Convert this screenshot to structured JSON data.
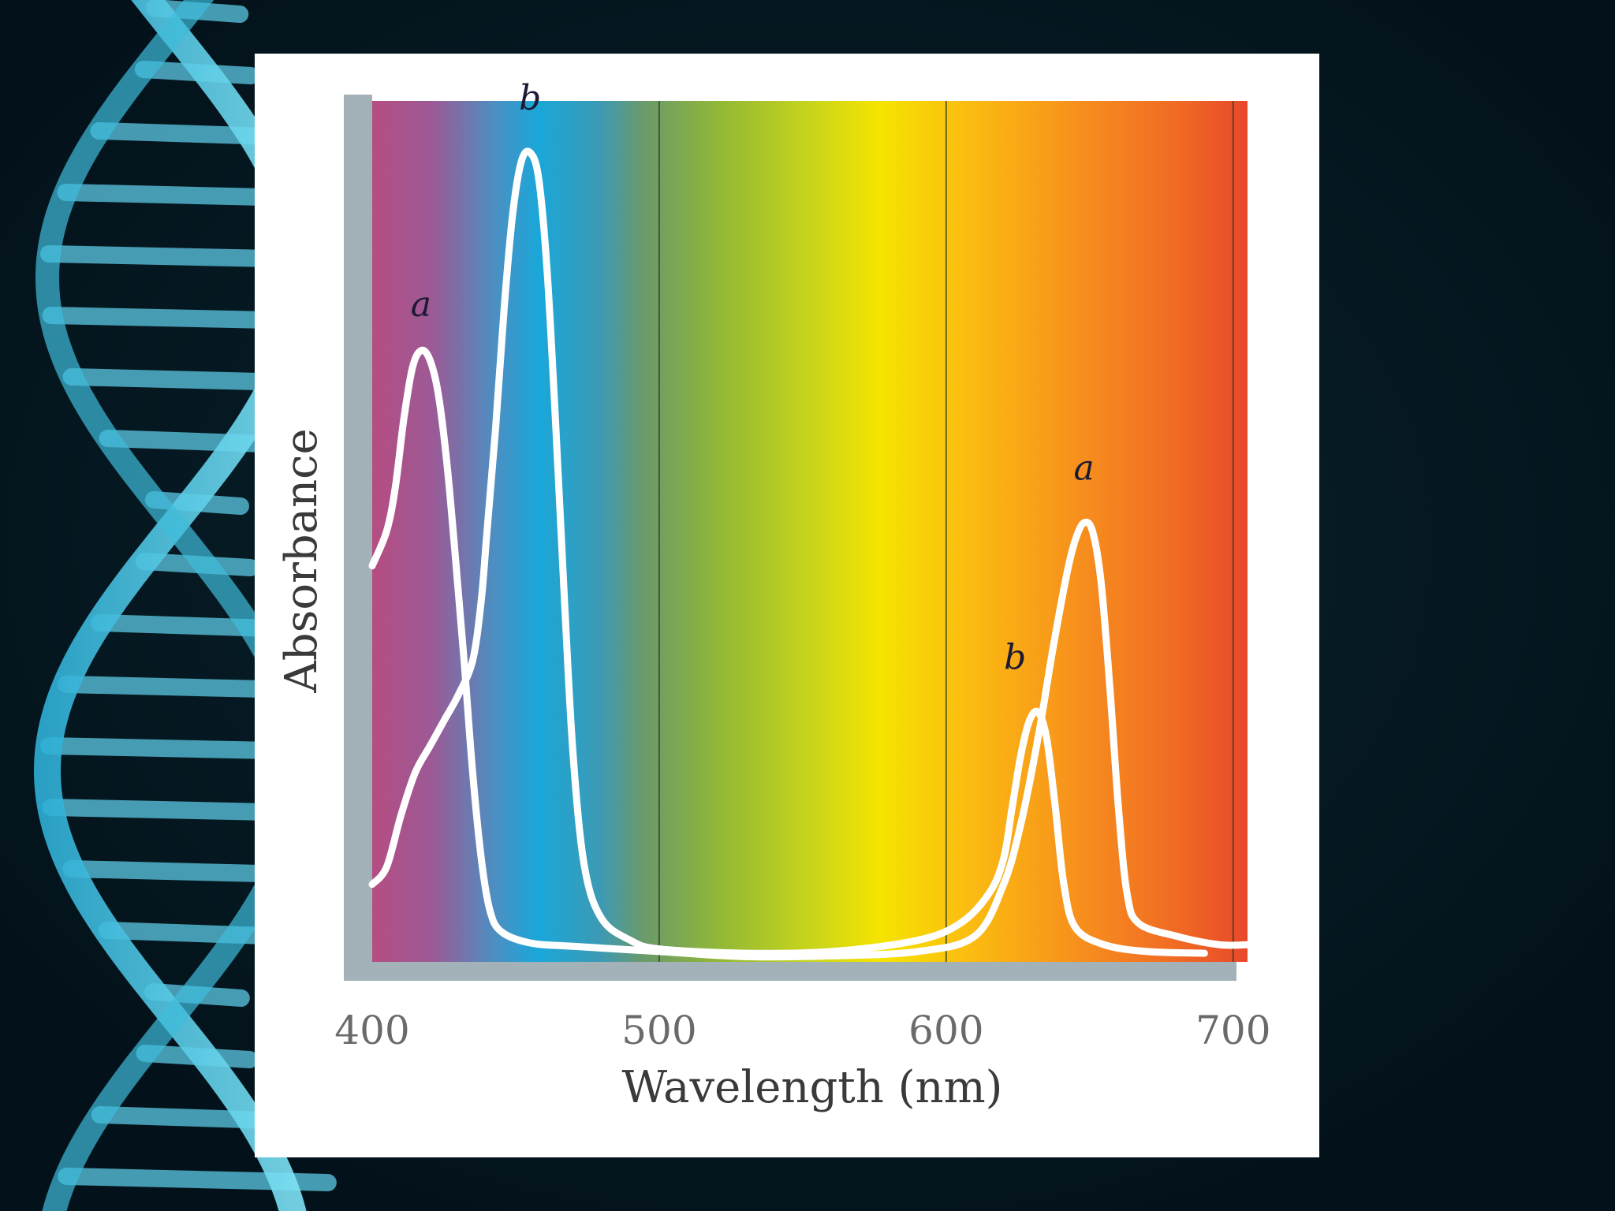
{
  "chart_data": {
    "type": "line",
    "xlabel": "Wavelength (nm)",
    "ylabel": "Absorbance",
    "xlim": [
      400,
      705
    ],
    "ylim": [
      0,
      1
    ],
    "x_ticks": [
      "400",
      "500",
      "600",
      "700"
    ],
    "grid_lines_x": [
      500,
      600,
      700
    ],
    "background": "visible spectrum gradient",
    "series": [
      {
        "name": "a",
        "color": "#ffffff",
        "points": [
          [
            400,
            0.46
          ],
          [
            405,
            0.5
          ],
          [
            408,
            0.55
          ],
          [
            411,
            0.63
          ],
          [
            414,
            0.69
          ],
          [
            417,
            0.71
          ],
          [
            420,
            0.7
          ],
          [
            423,
            0.66
          ],
          [
            426,
            0.58
          ],
          [
            429,
            0.47
          ],
          [
            432,
            0.35
          ],
          [
            435,
            0.22
          ],
          [
            438,
            0.12
          ],
          [
            441,
            0.06
          ],
          [
            445,
            0.035
          ],
          [
            455,
            0.022
          ],
          [
            470,
            0.018
          ],
          [
            500,
            0.012
          ],
          [
            530,
            0.006
          ],
          [
            560,
            0.007
          ],
          [
            590,
            0.012
          ],
          [
            610,
            0.03
          ],
          [
            620,
            0.09
          ],
          [
            626,
            0.16
          ],
          [
            632,
            0.26
          ],
          [
            637,
            0.36
          ],
          [
            642,
            0.45
          ],
          [
            645,
            0.49
          ],
          [
            648,
            0.51
          ],
          [
            651,
            0.5
          ],
          [
            654,
            0.44
          ],
          [
            657,
            0.32
          ],
          [
            660,
            0.18
          ],
          [
            663,
            0.08
          ],
          [
            667,
            0.045
          ],
          [
            680,
            0.03
          ],
          [
            695,
            0.02
          ],
          [
            705,
            0.02
          ]
        ]
      },
      {
        "name": "b",
        "color": "#ffffff",
        "points": [
          [
            400,
            0.09
          ],
          [
            405,
            0.11
          ],
          [
            410,
            0.17
          ],
          [
            415,
            0.22
          ],
          [
            420,
            0.25
          ],
          [
            425,
            0.28
          ],
          [
            430,
            0.31
          ],
          [
            435,
            0.35
          ],
          [
            438,
            0.42
          ],
          [
            440,
            0.5
          ],
          [
            443,
            0.62
          ],
          [
            446,
            0.76
          ],
          [
            449,
            0.87
          ],
          [
            452,
            0.93
          ],
          [
            455,
            0.94
          ],
          [
            458,
            0.91
          ],
          [
            461,
            0.8
          ],
          [
            464,
            0.62
          ],
          [
            467,
            0.42
          ],
          [
            470,
            0.24
          ],
          [
            474,
            0.11
          ],
          [
            480,
            0.05
          ],
          [
            490,
            0.025
          ],
          [
            500,
            0.015
          ],
          [
            530,
            0.01
          ],
          [
            560,
            0.012
          ],
          [
            590,
            0.025
          ],
          [
            605,
            0.045
          ],
          [
            615,
            0.08
          ],
          [
            620,
            0.12
          ],
          [
            623,
            0.18
          ],
          [
            626,
            0.24
          ],
          [
            629,
            0.28
          ],
          [
            632,
            0.29
          ],
          [
            635,
            0.26
          ],
          [
            638,
            0.18
          ],
          [
            641,
            0.09
          ],
          [
            645,
            0.04
          ],
          [
            655,
            0.02
          ],
          [
            670,
            0.012
          ],
          [
            690,
            0.01
          ]
        ]
      }
    ],
    "annotations": [
      {
        "text": "a",
        "x": 417,
        "y": 0.75
      },
      {
        "text": "b",
        "x": 455,
        "y": 0.99
      },
      {
        "text": "a",
        "x": 648,
        "y": 0.56
      },
      {
        "text": "b",
        "x": 624,
        "y": 0.34
      }
    ]
  }
}
